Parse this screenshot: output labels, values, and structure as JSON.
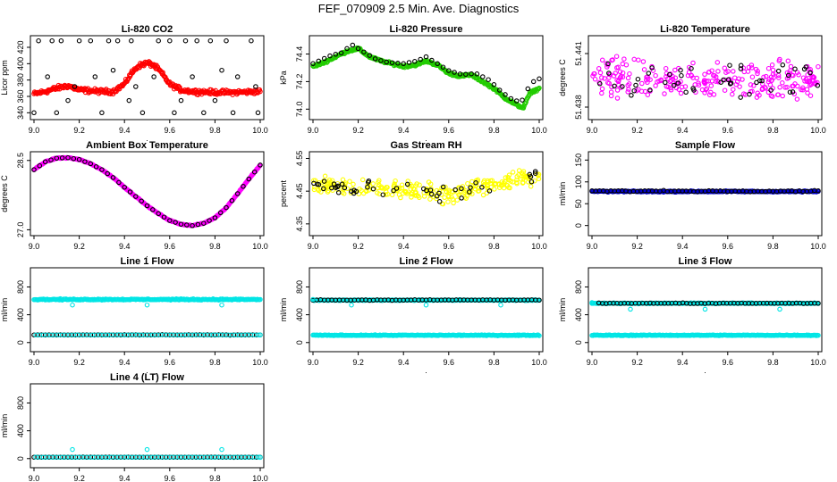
{
  "figure": {
    "title": "FEF_070909  2.5 Min. Ave. Diagnostics",
    "xlabel_mark": "."
  },
  "colors": {
    "red": "#ff0000",
    "green": "#22cc00",
    "magenta": "#ff00ff",
    "yellow": "#ffff00",
    "blue": "#0000cc",
    "cyan": "#00e5e5",
    "black": "#000000"
  },
  "chart_data": [
    {
      "id": "co2",
      "type": "scatter",
      "title": "Li-820 CO2",
      "ylabel": "Licor ppm",
      "xlim": [
        9.0,
        10.0
      ],
      "ylim": [
        336,
        432
      ],
      "xticks": [
        "9.0",
        "9.2",
        "9.4",
        "9.6",
        "9.8",
        "10.0"
      ],
      "yticks": [
        340,
        360,
        380,
        400,
        420
      ],
      "series": [
        {
          "name": "red",
          "color": "red",
          "style": "dense",
          "x": [
            9.0,
            9.05,
            9.1,
            9.15,
            9.2,
            9.25,
            9.3,
            9.35,
            9.4,
            9.43,
            9.46,
            9.5,
            9.53,
            9.56,
            9.6,
            9.65,
            9.7,
            9.8,
            9.9,
            10.0
          ],
          "y": [
            363,
            366,
            370,
            373,
            368,
            367,
            366,
            366,
            375,
            388,
            397,
            401,
            398,
            390,
            375,
            368,
            366,
            365,
            365,
            366
          ],
          "jitter": 4
        },
        {
          "name": "black",
          "color": "black",
          "style": "sparse",
          "x": [
            9.02,
            9.08,
            9.12,
            9.2,
            9.25,
            9.33,
            9.37,
            9.43,
            9.55,
            9.6,
            9.67,
            9.72,
            9.78,
            9.85,
            9.96,
            9.0,
            9.1,
            9.3,
            9.48,
            9.62,
            9.75,
            9.88,
            9.99,
            9.15,
            9.42,
            9.8,
            9.06,
            9.27,
            9.53,
            9.7,
            9.9,
            9.18,
            9.35,
            9.45,
            9.65,
            9.83,
            9.98
          ],
          "y": [
            428,
            428,
            428,
            428,
            428,
            428,
            428,
            428,
            428,
            428,
            428,
            428,
            428,
            428,
            428,
            340,
            340,
            340,
            340,
            340,
            340,
            340,
            340,
            355,
            355,
            355,
            384,
            384,
            384,
            384,
            384,
            372,
            392,
            372,
            355,
            392,
            372
          ]
        }
      ]
    },
    {
      "id": "pressure",
      "type": "scatter",
      "title": "Li-820 Pressure",
      "ylabel": "kPa",
      "xlim": [
        9.0,
        10.0
      ],
      "ylim": [
        73.95,
        74.52
      ],
      "xticks": [
        "9.0",
        "9.2",
        "9.4",
        "9.6",
        "9.8",
        "10.0"
      ],
      "yticks": [
        "74.0",
        "74.2",
        "74.4"
      ],
      "series": [
        {
          "name": "green",
          "color": "green",
          "style": "dense",
          "x": [
            9.0,
            9.05,
            9.1,
            9.15,
            9.2,
            9.25,
            9.3,
            9.35,
            9.4,
            9.45,
            9.5,
            9.55,
            9.6,
            9.65,
            9.7,
            9.75,
            9.8,
            9.85,
            9.9,
            9.93,
            9.96,
            10.0
          ],
          "y": [
            74.31,
            74.34,
            74.38,
            74.42,
            74.44,
            74.38,
            74.35,
            74.33,
            74.31,
            74.32,
            74.35,
            74.32,
            74.26,
            74.24,
            74.25,
            74.2,
            74.15,
            74.08,
            74.03,
            74.01,
            74.12,
            74.15
          ],
          "jitter": 0.012
        },
        {
          "name": "black",
          "color": "black",
          "style": "sparse-follow",
          "x": [
            9.0,
            9.04,
            9.08,
            9.13,
            9.17,
            9.22,
            9.28,
            9.33,
            9.4,
            9.46,
            9.5,
            9.55,
            9.6,
            9.66,
            9.72,
            9.78,
            9.83,
            9.88,
            9.92,
            9.96,
            9.99
          ],
          "y": [
            74.33,
            74.36,
            74.39,
            74.41,
            74.47,
            74.42,
            74.36,
            74.34,
            74.33,
            74.35,
            74.38,
            74.33,
            74.28,
            74.25,
            74.26,
            74.21,
            74.13,
            74.07,
            74.05,
            74.18,
            74.22
          ]
        }
      ]
    },
    {
      "id": "licor-temp",
      "type": "scatter",
      "title": "Li-820 Temperature",
      "ylabel": "degrees C",
      "xlim": [
        9.0,
        10.0
      ],
      "ylim": [
        51.4375,
        51.4419
      ],
      "xticks": [
        "9.0",
        "9.2",
        "9.4",
        "9.6",
        "9.8",
        "10.0"
      ],
      "yticks": [
        "51.438",
        "51.441"
      ],
      "series": [
        {
          "name": "magenta",
          "color": "magenta",
          "style": "noise",
          "x": [
            9.0,
            10.0
          ],
          "y": [
            51.4395,
            51.4395
          ],
          "jitter": 0.0016
        },
        {
          "name": "black",
          "color": "black",
          "style": "noise-sparse",
          "x": [
            9.0,
            10.0
          ],
          "y": [
            51.4395,
            51.4395
          ],
          "jitter": 0.0014
        }
      ]
    },
    {
      "id": "box-temp",
      "type": "scatter",
      "title": "Ambient Box Temperature",
      "ylabel": "degrees C",
      "xlim": [
        9.0,
        10.0
      ],
      "ylim": [
        26.95,
        28.65
      ],
      "xticks": [
        "9.0",
        "9.2",
        "9.4",
        "9.6",
        "9.8",
        "10.0"
      ],
      "yticks": [
        "27.0",
        "28.5"
      ],
      "series": [
        {
          "name": "magenta",
          "color": "magenta",
          "style": "dense",
          "x": [
            9.0,
            9.05,
            9.1,
            9.15,
            9.2,
            9.25,
            9.3,
            9.35,
            9.4,
            9.45,
            9.5,
            9.55,
            9.6,
            9.65,
            9.7,
            9.75,
            9.8,
            9.85,
            9.9,
            9.95,
            10.0
          ],
          "y": [
            28.3,
            28.47,
            28.55,
            28.56,
            28.52,
            28.43,
            28.3,
            28.13,
            27.92,
            27.72,
            27.52,
            27.35,
            27.2,
            27.12,
            27.09,
            27.14,
            27.26,
            27.48,
            27.78,
            28.1,
            28.4
          ],
          "jitter": 0.015
        },
        {
          "name": "black",
          "color": "black",
          "style": "sparse-follow",
          "x": [
            9.0,
            9.05,
            9.1,
            9.15,
            9.2,
            9.25,
            9.3,
            9.35,
            9.4,
            9.45,
            9.5,
            9.55,
            9.6,
            9.65,
            9.7,
            9.75,
            9.8,
            9.85,
            9.9,
            9.95,
            10.0
          ],
          "y": [
            28.3,
            28.47,
            28.55,
            28.56,
            28.52,
            28.43,
            28.3,
            28.13,
            27.92,
            27.72,
            27.52,
            27.35,
            27.2,
            27.12,
            27.09,
            27.14,
            27.26,
            27.48,
            27.78,
            28.1,
            28.4
          ]
        }
      ]
    },
    {
      "id": "rh",
      "type": "scatter",
      "title": "Gas Stream RH",
      "ylabel": "percent",
      "xlim": [
        9.0,
        10.0
      ],
      "ylim": [
        4.325,
        4.565
      ],
      "xticks": [
        "9.0",
        "9.2",
        "9.4",
        "9.6",
        "9.8",
        "10.0"
      ],
      "yticks": [
        "4.35",
        "4.45",
        "4.55"
      ],
      "series": [
        {
          "name": "yellow",
          "color": "yellow",
          "style": "noise",
          "x": [
            9.0,
            9.3,
            9.6,
            9.8,
            10.0
          ],
          "y": [
            4.47,
            4.46,
            4.44,
            4.47,
            4.5
          ],
          "jitter": 0.04
        },
        {
          "name": "black",
          "color": "black",
          "style": "noise-sparse",
          "x": [
            9.0,
            9.3,
            9.6,
            9.8,
            10.0
          ],
          "y": [
            4.47,
            4.46,
            4.44,
            4.47,
            4.5
          ],
          "jitter": 0.035
        }
      ]
    },
    {
      "id": "sample-flow",
      "type": "scatter",
      "title": "Sample Flow",
      "ylabel": "ml/min",
      "xlim": [
        9.0,
        10.0
      ],
      "ylim": [
        -15,
        165
      ],
      "xticks": [
        "9.0",
        "9.2",
        "9.4",
        "9.6",
        "9.8",
        "10.0"
      ],
      "yticks": [
        0,
        50,
        100,
        150
      ],
      "series": [
        {
          "name": "blue",
          "color": "blue",
          "style": "flat",
          "x": [
            9.0,
            10.0
          ],
          "y": [
            78,
            78
          ],
          "jitter": 2
        },
        {
          "name": "black",
          "color": "black",
          "style": "flat-sparse",
          "x": [
            9.0,
            10.0
          ],
          "y": [
            79,
            79
          ],
          "jitter": 2
        }
      ]
    },
    {
      "id": "line1",
      "type": "scatter",
      "title": "Line 1 Flow",
      "ylabel": "ml/min",
      "xlim": [
        9.0,
        10.0
      ],
      "ylim": [
        -80,
        1050
      ],
      "xticks": [
        "9.0",
        "9.2",
        "9.4",
        "9.6",
        "9.8",
        "10.0"
      ],
      "yticks": [
        0,
        400,
        800
      ],
      "series": [
        {
          "name": "cyan-high",
          "color": "cyan",
          "style": "flat",
          "x": [
            9.0,
            10.0
          ],
          "y": [
            620,
            620
          ],
          "jitter": 12
        },
        {
          "name": "black-low",
          "color": "black",
          "style": "flat-sparse",
          "x": [
            9.0,
            10.0
          ],
          "y": [
            110,
            110
          ],
          "jitter": 4
        },
        {
          "name": "cyan-low",
          "color": "cyan",
          "style": "flat-sparse2",
          "x": [
            9.0,
            10.0
          ],
          "y": [
            110,
            110
          ],
          "jitter": 3
        },
        {
          "name": "cyan-outliers",
          "color": "cyan",
          "style": "points",
          "x": [
            9.17,
            9.5,
            9.83
          ],
          "y": [
            540,
            540,
            540
          ]
        }
      ]
    },
    {
      "id": "line2",
      "type": "scatter",
      "title": "Line 2 Flow",
      "ylabel": "ml/min",
      "xlim": [
        9.0,
        10.0
      ],
      "ylim": [
        -80,
        1050
      ],
      "xticks": [
        "9.0",
        "9.2",
        "9.4",
        "9.6",
        "9.8",
        "10.0"
      ],
      "yticks": [
        0,
        400,
        800
      ],
      "series": [
        {
          "name": "cyan-low",
          "color": "cyan",
          "style": "flat",
          "x": [
            9.0,
            10.0
          ],
          "y": [
            105,
            105
          ],
          "jitter": 8
        },
        {
          "name": "cyan-high",
          "color": "cyan",
          "style": "flat",
          "x": [
            9.0,
            10.0
          ],
          "y": [
            610,
            610
          ],
          "jitter": 8
        },
        {
          "name": "black-high",
          "color": "black",
          "style": "flat-sparse",
          "x": [
            9.0,
            10.0
          ],
          "y": [
            612,
            612
          ],
          "jitter": 6
        },
        {
          "name": "cyan-outliers",
          "color": "cyan",
          "style": "points",
          "x": [
            9.0,
            9.17,
            9.5,
            9.83
          ],
          "y": [
            620,
            540,
            540,
            540
          ]
        }
      ]
    },
    {
      "id": "line3",
      "type": "scatter",
      "title": "Line 3 Flow",
      "ylabel": "ml/min",
      "xlim": [
        9.0,
        10.0
      ],
      "ylim": [
        -80,
        1050
      ],
      "xticks": [
        "9.0",
        "9.2",
        "9.4",
        "9.6",
        "9.8",
        "10.0"
      ],
      "yticks": [
        0,
        400,
        800
      ],
      "series": [
        {
          "name": "cyan-low",
          "color": "cyan",
          "style": "flat",
          "x": [
            9.0,
            10.0
          ],
          "y": [
            105,
            105
          ],
          "jitter": 8
        },
        {
          "name": "cyan-high",
          "color": "cyan",
          "style": "flat",
          "x": [
            9.0,
            10.0
          ],
          "y": [
            565,
            565
          ],
          "jitter": 8
        },
        {
          "name": "black-high",
          "color": "black",
          "style": "flat-sparse",
          "x": [
            9.03,
            10.0
          ],
          "y": [
            565,
            565
          ],
          "jitter": 6
        },
        {
          "name": "cyan-outliers",
          "color": "cyan",
          "style": "points",
          "x": [
            9.0,
            9.17,
            9.5,
            9.83
          ],
          "y": [
            575,
            480,
            480,
            480
          ]
        }
      ]
    },
    {
      "id": "line4",
      "type": "scatter",
      "title": "Line 4 (LT) Flow",
      "ylabel": "ml/min",
      "xlim": [
        9.0,
        10.0
      ],
      "ylim": [
        -80,
        1050
      ],
      "xticks": [
        "9.0",
        "9.2",
        "9.4",
        "9.6",
        "9.8",
        "10.0"
      ],
      "yticks": [
        0,
        400,
        800
      ],
      "series": [
        {
          "name": "black",
          "color": "black",
          "style": "flat-sparse",
          "x": [
            9.0,
            10.0
          ],
          "y": [
            20,
            20
          ],
          "jitter": 3
        },
        {
          "name": "cyan",
          "color": "cyan",
          "style": "flat-sparse2",
          "x": [
            9.0,
            10.0
          ],
          "y": [
            20,
            20
          ],
          "jitter": 3
        },
        {
          "name": "cyan-outliers",
          "color": "cyan",
          "style": "points",
          "x": [
            9.17,
            9.5,
            9.83
          ],
          "y": [
            130,
            130,
            130
          ]
        }
      ]
    }
  ]
}
